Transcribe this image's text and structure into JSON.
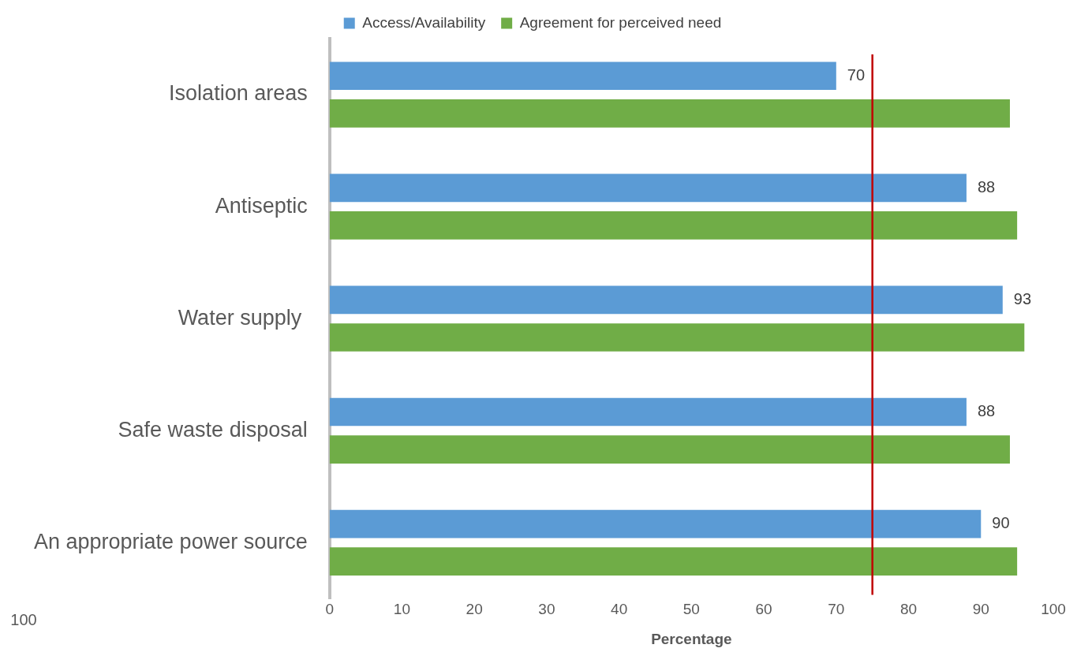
{
  "chart_data": {
    "type": "bar",
    "orientation": "horizontal",
    "xlabel": "Percentage",
    "categories": [
      "Isolation areas",
      "Antiseptic",
      "Water supply ",
      "Safe waste disposal",
      "An appropriate power source"
    ],
    "series": [
      {
        "name": "Access/Availability",
        "color": "#5b9bd5",
        "values": [
          70,
          88,
          93,
          88,
          90
        ],
        "value_labels": [
          "70",
          "88",
          "93",
          "88",
          "90"
        ]
      },
      {
        "name": "Agreement for perceived need",
        "color": "#70ad47",
        "values": [
          94,
          95,
          96,
          94,
          95
        ]
      }
    ],
    "xlim": [
      0,
      100
    ],
    "xticks": [
      0,
      10,
      20,
      30,
      40,
      50,
      60,
      70,
      80,
      90,
      100
    ],
    "grid": false,
    "legend": "top",
    "ref_lines": [
      {
        "axis": "x",
        "value": 75,
        "color": "#c00000"
      }
    ],
    "annotations": [
      "100"
    ]
  }
}
